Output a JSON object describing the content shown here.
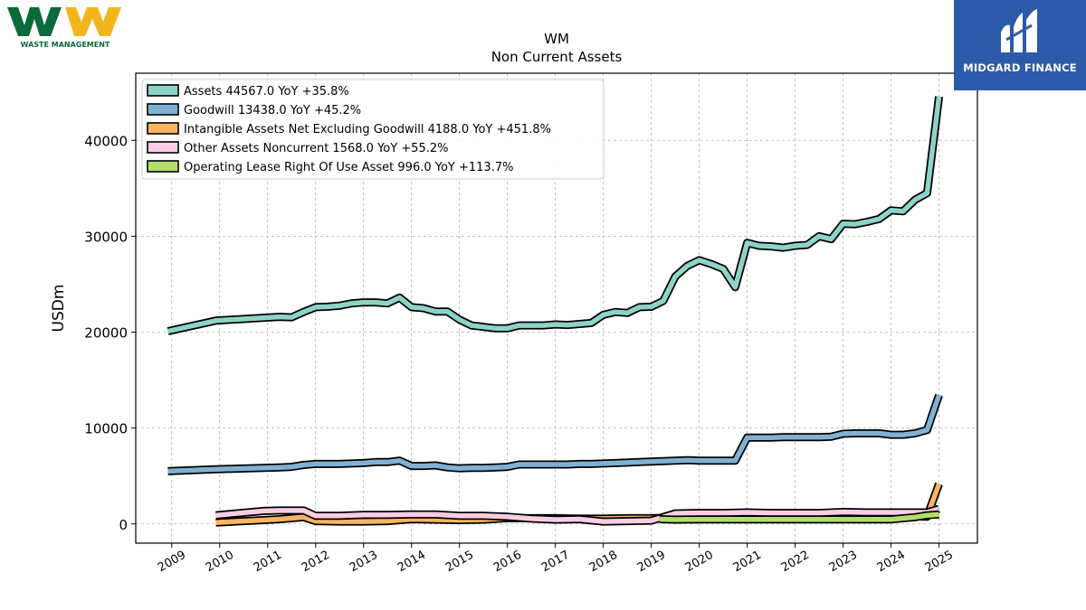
{
  "brand": {
    "left_logo_text": "WASTE MANAGEMENT",
    "right_logo_text": "MIDGARD FINANCE"
  },
  "chart_data": {
    "type": "area",
    "title": "WM",
    "subtitle": "Non Current  Assets",
    "ylabel": "USDm",
    "xlabel": "",
    "ylim": [
      -2000,
      47000
    ],
    "xlim": [
      2008.25,
      2025.8
    ],
    "yticks": [
      0,
      10000,
      20000,
      30000,
      40000
    ],
    "xticks": [
      "2009",
      "2010",
      "2011",
      "2012",
      "2013",
      "2014",
      "2015",
      "2016",
      "2017",
      "2018",
      "2019",
      "2020",
      "2021",
      "2022",
      "2023",
      "2024",
      "2025"
    ],
    "grid": true,
    "legend_position": "top-left",
    "series": [
      {
        "name": "Assets",
        "legend": "Assets  44567.0 YoY +35.8%",
        "color": "#8dd3c7",
        "x": [
          2008.92,
          2009.92,
          2010.92,
          2011.25,
          2011.5,
          2011.75,
          2012.0,
          2012.25,
          2012.5,
          2012.75,
          2013.0,
          2013.25,
          2013.5,
          2013.75,
          2014.0,
          2014.25,
          2014.5,
          2014.75,
          2015.0,
          2015.25,
          2015.5,
          2015.75,
          2016.0,
          2016.25,
          2016.5,
          2016.75,
          2017.0,
          2017.25,
          2017.5,
          2017.75,
          2018.0,
          2018.25,
          2018.5,
          2018.75,
          2019.0,
          2019.25,
          2019.5,
          2019.75,
          2020.0,
          2020.25,
          2020.5,
          2020.75,
          2021.0,
          2021.25,
          2021.5,
          2021.75,
          2022.0,
          2022.25,
          2022.5,
          2022.75,
          2023.0,
          2023.25,
          2023.5,
          2023.75,
          2024.0,
          2024.25,
          2024.5,
          2024.75,
          2025.0
        ],
        "values": [
          20100,
          21200,
          21500,
          21600,
          21550,
          22100,
          22600,
          22650,
          22750,
          23000,
          23100,
          23100,
          23000,
          23600,
          22600,
          22500,
          22150,
          22150,
          21300,
          20700,
          20550,
          20400,
          20400,
          20700,
          20700,
          20700,
          20800,
          20750,
          20850,
          20950,
          21800,
          22100,
          22000,
          22600,
          22650,
          23250,
          25800,
          26900,
          27500,
          27100,
          26600,
          24700,
          29300,
          29000,
          28950,
          28800,
          29000,
          29100,
          30000,
          29700,
          31300,
          31250,
          31500,
          31800,
          32700,
          32600,
          33800,
          34500,
          44567
        ]
      },
      {
        "name": "Goodwill",
        "legend": "Goodwill  13438.0 YoY +45.2%",
        "color": "#80b1d3",
        "x": [
          2008.92,
          2009.92,
          2010.92,
          2011.25,
          2011.5,
          2011.75,
          2012.0,
          2012.25,
          2012.5,
          2012.75,
          2013.0,
          2013.25,
          2013.5,
          2013.75,
          2014.0,
          2014.25,
          2014.5,
          2014.75,
          2015.0,
          2015.25,
          2015.5,
          2015.75,
          2016.0,
          2016.25,
          2016.5,
          2016.75,
          2017.0,
          2017.25,
          2017.5,
          2017.75,
          2018.0,
          2018.25,
          2018.5,
          2018.75,
          2019.0,
          2019.25,
          2019.5,
          2019.75,
          2020.0,
          2020.25,
          2020.5,
          2020.75,
          2021.0,
          2021.25,
          2021.5,
          2021.75,
          2022.0,
          2022.25,
          2022.5,
          2022.75,
          2023.0,
          2023.25,
          2023.5,
          2023.75,
          2024.0,
          2024.25,
          2024.5,
          2024.75,
          2025.0
        ],
        "values": [
          5500,
          5700,
          5850,
          5900,
          5950,
          6150,
          6250,
          6250,
          6250,
          6300,
          6350,
          6450,
          6450,
          6600,
          6050,
          6050,
          6100,
          5900,
          5800,
          5850,
          5850,
          5900,
          5950,
          6200,
          6200,
          6200,
          6200,
          6200,
          6250,
          6250,
          6300,
          6350,
          6400,
          6450,
          6500,
          6550,
          6600,
          6650,
          6600,
          6600,
          6600,
          6600,
          9000,
          9000,
          9000,
          9050,
          9050,
          9050,
          9050,
          9100,
          9400,
          9450,
          9450,
          9450,
          9300,
          9300,
          9450,
          9800,
          13438
        ]
      },
      {
        "name": "Intangible Assets Net Excluding Goodwill",
        "legend": "Intangible Assets Net Excluding Goodwill  4188.0 YoY +451.8%",
        "color": "#fdb462",
        "x": [
          2009.92,
          2010.92,
          2011.25,
          2011.75,
          2012.0,
          2012.5,
          2013.0,
          2013.5,
          2014.0,
          2014.5,
          2015.0,
          2015.5,
          2016.0,
          2016.5,
          2017.0,
          2017.5,
          2018.0,
          2018.5,
          2019.0,
          2019.5,
          2020.0,
          2020.5,
          2021.0,
          2021.5,
          2022.0,
          2022.5,
          2023.0,
          2023.5,
          2024.0,
          2024.5,
          2024.75,
          2025.0
        ],
        "values": [
          150,
          400,
          500,
          700,
          300,
          250,
          250,
          300,
          500,
          450,
          400,
          450,
          600,
          600,
          600,
          550,
          550,
          600,
          600,
          650,
          650,
          650,
          1000,
          950,
          900,
          900,
          950,
          900,
          800,
          800,
          760,
          4188
        ]
      },
      {
        "name": "Other Assets Noncurrent",
        "legend": "Other Assets Noncurrent  1568.0 YoY +55.2%",
        "color": "#fccde5",
        "x": [
          2009.92,
          2010.92,
          2011.25,
          2011.75,
          2012.0,
          2012.5,
          2013.0,
          2013.5,
          2014.0,
          2014.5,
          2015.0,
          2015.5,
          2016.0,
          2016.5,
          2017.0,
          2017.5,
          2018.0,
          2018.5,
          2019.0,
          2019.5,
          2020.0,
          2020.5,
          2021.0,
          2021.5,
          2022.0,
          2022.5,
          2023.0,
          2023.5,
          2024.0,
          2024.5,
          2024.75,
          2025.0
        ],
        "values": [
          900,
          1350,
          1400,
          1400,
          850,
          850,
          950,
          950,
          1000,
          1000,
          850,
          850,
          750,
          550,
          450,
          500,
          250,
          300,
          350,
          1100,
          1150,
          1150,
          1200,
          1150,
          1150,
          1150,
          1250,
          1200,
          1200,
          1200,
          1200,
          1568
        ]
      },
      {
        "name": "Operating Lease Right Of Use Asset",
        "legend": "Operating Lease Right Of Use Asset  996.0 YoY +113.7%",
        "color": "#b3de69",
        "x": [
          2019.17,
          2019.5,
          2020.0,
          2020.5,
          2021.0,
          2021.5,
          2022.0,
          2022.5,
          2023.0,
          2023.5,
          2024.0,
          2024.5,
          2024.75,
          2025.0
        ],
        "values": [
          500,
          450,
          480,
          480,
          480,
          480,
          480,
          480,
          480,
          480,
          480,
          700,
          900,
          996
        ]
      }
    ]
  }
}
